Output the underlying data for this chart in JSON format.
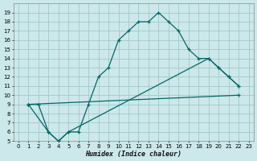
{
  "xlabel": "Humidex (Indice chaleur)",
  "background_color": "#cce8ea",
  "grid_color": "#a0c8c8",
  "line_color": "#006868",
  "xlim": [
    -0.5,
    23.5
  ],
  "ylim": [
    5,
    20
  ],
  "xticks": [
    0,
    1,
    2,
    3,
    4,
    5,
    6,
    7,
    8,
    9,
    10,
    11,
    12,
    13,
    14,
    15,
    16,
    17,
    18,
    19,
    20,
    21,
    22,
    23
  ],
  "yticks": [
    5,
    6,
    7,
    8,
    9,
    10,
    11,
    12,
    13,
    14,
    15,
    16,
    17,
    18,
    19
  ],
  "line1_x": [
    1,
    2,
    3,
    4,
    5,
    6,
    7,
    8,
    9,
    10,
    11,
    12,
    13,
    14,
    15,
    16,
    17,
    18,
    19,
    20,
    21,
    22
  ],
  "line1_y": [
    9,
    9,
    6,
    5,
    6,
    6,
    9,
    12,
    13,
    16,
    17,
    18,
    18,
    19,
    18,
    17,
    15,
    14,
    14,
    13,
    12,
    11
  ],
  "line2_x": [
    1,
    3,
    4,
    5,
    19,
    20,
    21,
    22
  ],
  "line2_y": [
    9,
    6,
    5,
    6,
    14,
    13,
    12,
    11
  ],
  "line3_x": [
    1,
    22
  ],
  "line3_y": [
    9,
    10
  ]
}
